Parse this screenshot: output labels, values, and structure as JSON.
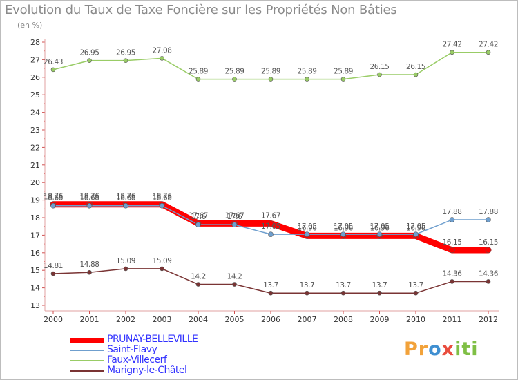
{
  "title": "Evolution du Taux de Taxe Foncière sur les Propriétés Non Bâties",
  "subtitle": "(en %)",
  "chart_data": {
    "type": "line",
    "title": "Evolution du Taux de Taxe Foncière sur les Propriétés Non Bâties",
    "ylabel": "(en %)",
    "xlabel": "",
    "x": [
      "2000",
      "2001",
      "2002",
      "2003",
      "2004",
      "2005",
      "2006",
      "2007",
      "2008",
      "2009",
      "2010",
      "2011",
      "2012"
    ],
    "yticks": [
      13,
      14,
      15,
      16,
      17,
      18,
      19,
      20,
      21,
      22,
      23,
      24,
      25,
      26,
      27,
      28
    ],
    "ylim": [
      13,
      28
    ],
    "grid": false,
    "legend_position": "bottom-left",
    "series": [
      {
        "name": "PRUNAY-BELLEVILLE",
        "color": "#ff0000",
        "values": [
          18.76,
          18.76,
          18.76,
          18.76,
          17.67,
          17.67,
          17.67,
          16.96,
          16.96,
          16.96,
          16.96,
          16.15,
          16.15
        ],
        "labels": [
          "18.76",
          "18.76",
          "18.76",
          "18.76",
          "17.67",
          "17.67",
          "17.67",
          "16.96",
          "16.96",
          "16.96",
          "16.96",
          "16.15",
          "16.15"
        ]
      },
      {
        "name": "Saint-Flavy",
        "color": "#6f9fce",
        "values": [
          18.68,
          18.68,
          18.68,
          18.68,
          17.6,
          17.6,
          17.05,
          17.05,
          17.05,
          17.05,
          17.05,
          17.88,
          17.88
        ],
        "labels": [
          "18.68",
          "18.68",
          "18.68",
          "18.68",
          "17.6",
          "17.6",
          "17.05",
          "17.05",
          "17.05",
          "17.05",
          "17.05",
          "17.88",
          "17.88"
        ]
      },
      {
        "name": "Faux-Villecerf",
        "color": "#99cc66",
        "values": [
          26.43,
          26.95,
          26.95,
          27.08,
          25.89,
          25.89,
          25.89,
          25.89,
          25.89,
          26.15,
          26.15,
          27.42,
          27.42
        ],
        "labels": [
          "26.43",
          "26.95",
          "26.95",
          "27.08",
          "25.89",
          "25.89",
          "25.89",
          "25.89",
          "25.89",
          "26.15",
          "26.15",
          "27.42",
          "27.42"
        ]
      },
      {
        "name": "Marigny-le-Châtel",
        "color": "#7a3434",
        "values": [
          14.81,
          14.88,
          15.09,
          15.09,
          14.2,
          14.2,
          13.7,
          13.7,
          13.7,
          13.7,
          13.7,
          14.36,
          14.36
        ],
        "labels": [
          "14.81",
          "14.88",
          "15.09",
          "15.09",
          "14.2",
          "14.2",
          "13.7",
          "13.7",
          "13.7",
          "13.7",
          "13.7",
          "14.36",
          "14.36"
        ]
      }
    ]
  },
  "legend": [
    {
      "name": "PRUNAY-BELLEVILLE",
      "color": "#ff0000",
      "text_color": "#3333ff"
    },
    {
      "name": "Saint-Flavy",
      "color": "#6f9fce",
      "text_color": "#3333ff"
    },
    {
      "name": "Faux-Villecerf",
      "color": "#99cc66",
      "text_color": "#3333ff"
    },
    {
      "name": "Marigny-le-Châtel",
      "color": "#7a3434",
      "text_color": "#3333ff"
    }
  ],
  "logo": {
    "parts": [
      "Pr",
      "o",
      "x",
      "iti"
    ]
  }
}
